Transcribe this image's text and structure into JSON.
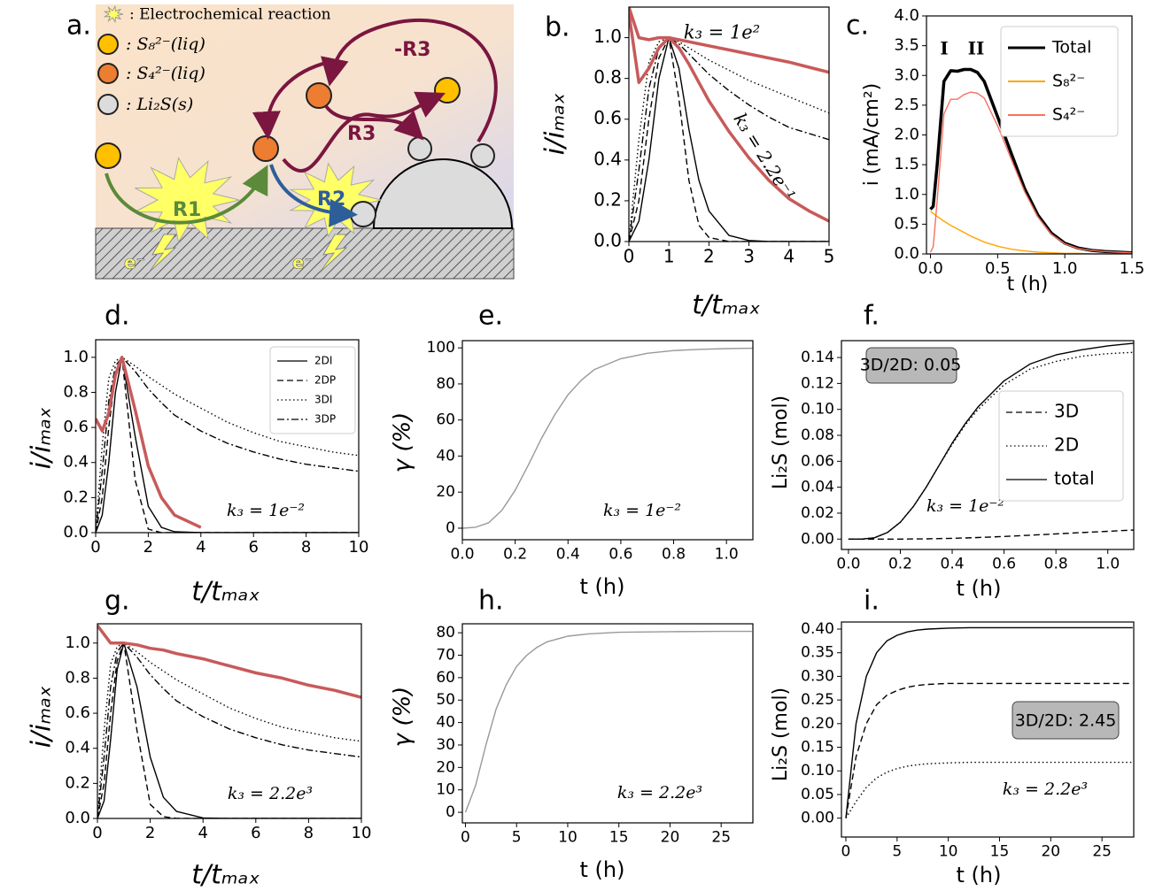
{
  "panel_a": {
    "label": "a.",
    "legend": [
      ": Electrochemical reaction",
      ": S₈²⁻(liq)",
      ": S₄²⁻(liq)",
      ": Li₂S(s)"
    ],
    "reactions": [
      "R1",
      "R2",
      "R3",
      "-R3"
    ],
    "electron": [
      "e⁻",
      "e⁻"
    ]
  },
  "chart_data": [
    {
      "type": "line",
      "panel_label": "b.",
      "xlabel": "t/tₘₐₓ",
      "ylabel": "i/iₘₐₓ",
      "xlim": [
        0,
        5
      ],
      "ylim": [
        0,
        1.15
      ],
      "xticks": [
        0,
        1,
        2,
        3,
        4,
        5
      ],
      "yticks": [
        {
          "value": 0,
          "label": "0.0"
        },
        0.2,
        0.4,
        0.6,
        0.8,
        {
          "value": 1,
          "label": "1.0"
        }
      ],
      "x": [
        0,
        0.25,
        0.5,
        0.75,
        1,
        1.25,
        1.5,
        1.75,
        2,
        2.5,
        3,
        3.5,
        4,
        4.5,
        5
      ],
      "series": [
        {
          "color": "#000000",
          "linestyle": "solid",
          "values": [
            0,
            0.1,
            0.4,
            0.8,
            1,
            0.85,
            0.55,
            0.3,
            0.15,
            0.03,
            0.005,
            0,
            0,
            0,
            0
          ]
        },
        {
          "color": "#000000",
          "linestyle": "dashed",
          "values": [
            0,
            0.2,
            0.6,
            0.9,
            1,
            0.7,
            0.3,
            0.08,
            0.02,
            0,
            0,
            0,
            0,
            0,
            0
          ]
        },
        {
          "color": "#000000",
          "linestyle": "dotted",
          "values": [
            0,
            0.5,
            0.88,
            0.98,
            1,
            0.98,
            0.95,
            0.92,
            0.89,
            0.84,
            0.79,
            0.75,
            0.71,
            0.67,
            0.63
          ]
        },
        {
          "color": "#000000",
          "linestyle": "dashdot",
          "values": [
            0,
            0.35,
            0.75,
            0.95,
            1,
            0.97,
            0.92,
            0.87,
            0.82,
            0.74,
            0.67,
            0.61,
            0.56,
            0.53,
            0.5
          ]
        },
        {
          "color": "#c85a5a",
          "linestyle": "thick",
          "values": [
            1.15,
            1.0,
            0.99,
            1.0,
            1.0,
            0.99,
            0.98,
            0.97,
            0.96,
            0.94,
            0.92,
            0.9,
            0.88,
            0.855,
            0.83
          ]
        },
        {
          "color": "#c85a5a",
          "linestyle": "thick",
          "values": [
            1.12,
            0.78,
            0.85,
            0.95,
            1.0,
            0.95,
            0.87,
            0.78,
            0.69,
            0.54,
            0.41,
            0.3,
            0.21,
            0.15,
            0.1
          ]
        }
      ],
      "annotations": [
        "k₃ = 1e²",
        "k₃ = 2.2e⁻¹"
      ]
    },
    {
      "type": "line",
      "panel_label": "c.",
      "xlabel": "t (h)",
      "ylabel": "i (mA/cm²)",
      "xlim": [
        -0.03,
        1.5
      ],
      "ylim": [
        0,
        4
      ],
      "xticks": [
        {
          "value": 0,
          "label": "0.0"
        },
        0.5,
        {
          "value": 1,
          "label": "1.0"
        },
        1.5
      ],
      "yticks": [
        {
          "value": 0,
          "label": "0.0"
        },
        0.5,
        {
          "value": 1,
          "label": "1.0"
        },
        1.5,
        {
          "value": 2,
          "label": "2.0"
        },
        2.5,
        {
          "value": 3,
          "label": "3.0"
        },
        3.5,
        {
          "value": 4,
          "label": "4.0"
        }
      ],
      "x": [
        0,
        0.02,
        0.05,
        0.1,
        0.15,
        0.2,
        0.25,
        0.3,
        0.35,
        0.4,
        0.5,
        0.6,
        0.7,
        0.8,
        0.9,
        1.0,
        1.1,
        1.2,
        1.3,
        1.4,
        1.5
      ],
      "series": [
        {
          "name": "Total",
          "color": "#000000",
          "linestyle": "thick",
          "values": [
            0.75,
            0.8,
            1.5,
            2.9,
            3.08,
            3.07,
            3.1,
            3.1,
            3.05,
            2.9,
            2.3,
            1.7,
            1.1,
            0.65,
            0.35,
            0.18,
            0.1,
            0.06,
            0.04,
            0.03,
            0.02
          ]
        },
        {
          "name": "S₈²⁻",
          "color": "#ffa500",
          "linestyle": "solid",
          "values": [
            0.72,
            0.68,
            0.63,
            0.55,
            0.48,
            0.42,
            0.36,
            0.3,
            0.25,
            0.2,
            0.13,
            0.08,
            0.05,
            0.03,
            0.02,
            0.01,
            0.01,
            0,
            0,
            0,
            0
          ]
        },
        {
          "name": "S₄²⁻",
          "color": "#f87060",
          "linestyle": "solid",
          "values": [
            0.03,
            0.12,
            0.9,
            2.35,
            2.6,
            2.6,
            2.68,
            2.72,
            2.7,
            2.62,
            2.15,
            1.6,
            1.05,
            0.62,
            0.33,
            0.17,
            0.09,
            0.06,
            0.04,
            0.03,
            0.02
          ]
        }
      ],
      "legend": "upper right",
      "annotations": [
        "I",
        "II"
      ]
    },
    {
      "type": "line",
      "panel_label": "d.",
      "xlabel": "t/tₘₐₓ",
      "ylabel": "i/iₘₐₓ",
      "xlim": [
        0,
        10
      ],
      "ylim": [
        0,
        1.1
      ],
      "xticks": [
        0,
        2,
        4,
        6,
        8,
        10
      ],
      "yticks": [
        {
          "value": 0,
          "label": "0.0"
        },
        0.2,
        0.4,
        0.6,
        0.8,
        {
          "value": 1,
          "label": "1.0"
        }
      ],
      "x": [
        0,
        0.25,
        0.5,
        0.75,
        1,
        1.5,
        2,
        2.5,
        3,
        4,
        5,
        6,
        7,
        8,
        9,
        10
      ],
      "series": [
        {
          "name": "2DI",
          "color": "#000000",
          "linestyle": "solid",
          "values": [
            0,
            0.1,
            0.4,
            0.8,
            1,
            0.55,
            0.15,
            0.03,
            0.005,
            0,
            0,
            0,
            0,
            0,
            0,
            0
          ]
        },
        {
          "name": "2DP",
          "color": "#000000",
          "linestyle": "dashed",
          "values": [
            0,
            0.2,
            0.6,
            0.9,
            1,
            0.3,
            0.02,
            0,
            0,
            0,
            0,
            0,
            0,
            0,
            0,
            0
          ]
        },
        {
          "name": "3DI",
          "color": "#000000",
          "linestyle": "dotted",
          "values": [
            0,
            0.5,
            0.88,
            0.98,
            1,
            0.95,
            0.89,
            0.84,
            0.79,
            0.71,
            0.63,
            0.57,
            0.52,
            0.49,
            0.46,
            0.44
          ]
        },
        {
          "name": "3DP",
          "color": "#000000",
          "linestyle": "dashdot",
          "values": [
            0,
            0.35,
            0.75,
            0.95,
            1,
            0.92,
            0.82,
            0.74,
            0.67,
            0.58,
            0.51,
            0.46,
            0.42,
            0.39,
            0.37,
            0.35
          ]
        },
        {
          "color": "#c85a5a",
          "linestyle": "thick",
          "values": [
            0.65,
            0.58,
            0.68,
            0.9,
            1.0,
            0.7,
            0.38,
            0.2,
            0.1,
            0.03,
            null,
            null,
            null,
            null,
            null,
            null
          ]
        }
      ],
      "legend": "upper right",
      "annotations": [
        "k₃ = 1e⁻²"
      ]
    },
    {
      "type": "line",
      "panel_label": "e.",
      "xlabel": "t (h)",
      "ylabel": "γ (%)",
      "xlim": [
        0,
        1.1
      ],
      "ylim": [
        -6.4,
        104
      ],
      "xticks": [
        {
          "value": 0,
          "label": "0.0"
        },
        0.2,
        0.4,
        0.6,
        0.8,
        {
          "value": 1,
          "label": "1.0"
        }
      ],
      "yticks": [
        0,
        20,
        40,
        60,
        80,
        100
      ],
      "x": [
        0,
        0.05,
        0.1,
        0.15,
        0.2,
        0.25,
        0.3,
        0.35,
        0.4,
        0.45,
        0.5,
        0.6,
        0.7,
        0.8,
        0.9,
        1.0,
        1.1
      ],
      "series": [
        {
          "color": "#999999",
          "linestyle": "solid",
          "values": [
            0,
            0.5,
            3,
            10,
            21,
            35,
            50,
            63,
            74,
            82,
            88,
            94,
            97,
            98.5,
            99.2,
            99.6,
            99.8
          ]
        }
      ],
      "annotations": [
        "k₃ = 1e⁻²"
      ]
    },
    {
      "type": "line",
      "panel_label": "f.",
      "xlabel": "t (h)",
      "ylabel": "Li₂S (mol)",
      "xlim": [
        -0.027,
        1.1
      ],
      "ylim": [
        -0.008,
        0.153
      ],
      "xticks": [
        {
          "value": 0,
          "label": "0.0"
        },
        0.2,
        0.4,
        0.6,
        0.8,
        {
          "value": 1,
          "label": "1.0"
        }
      ],
      "yticks": [
        {
          "value": 0,
          "label": "0.00"
        },
        0.02,
        0.04,
        0.06,
        0.08,
        {
          "value": 0.1,
          "label": "0.10"
        },
        0.12,
        0.14
      ],
      "x": [
        0,
        0.05,
        0.1,
        0.15,
        0.2,
        0.25,
        0.3,
        0.35,
        0.4,
        0.45,
        0.5,
        0.6,
        0.7,
        0.8,
        0.9,
        1.0,
        1.1
      ],
      "series": [
        {
          "name": "3D",
          "color": "#000000",
          "linestyle": "dashed",
          "values": [
            0,
            0,
            0,
            0,
            0,
            0.0001,
            0.0002,
            0.0004,
            0.0006,
            0.0009,
            0.0012,
            0.002,
            0.003,
            0.004,
            0.005,
            0.006,
            0.007
          ]
        },
        {
          "name": "2D",
          "color": "#000000",
          "linestyle": "dotted",
          "values": [
            0,
            0,
            0.001,
            0.005,
            0.013,
            0.025,
            0.04,
            0.057,
            0.073,
            0.088,
            0.1,
            0.119,
            0.131,
            0.137,
            0.141,
            0.143,
            0.144
          ]
        },
        {
          "name": "total",
          "color": "#000000",
          "linestyle": "solid",
          "values": [
            0,
            0,
            0.001,
            0.005,
            0.013,
            0.025,
            0.04,
            0.057,
            0.074,
            0.089,
            0.102,
            0.122,
            0.135,
            0.142,
            0.146,
            0.149,
            0.151
          ]
        }
      ],
      "legend": "center right",
      "annotations": [
        "3D/2D: 0.05",
        "k₃ = 1e⁻²"
      ]
    },
    {
      "type": "line",
      "panel_label": "g.",
      "xlabel": "t/tₘₐₓ",
      "ylabel": "i/iₘₐₓ",
      "xlim": [
        0,
        10
      ],
      "ylim": [
        0,
        1.11
      ],
      "xticks": [
        0,
        2,
        4,
        6,
        8,
        10
      ],
      "yticks": [
        {
          "value": 0,
          "label": "0.0"
        },
        0.2,
        0.4,
        0.6,
        0.8,
        {
          "value": 1,
          "label": "1.0"
        }
      ],
      "x": [
        0,
        0.25,
        0.5,
        0.75,
        1,
        1.5,
        2,
        2.5,
        3,
        4,
        5,
        6,
        7,
        8,
        9,
        10
      ],
      "series": [
        {
          "color": "#000000",
          "linestyle": "solid",
          "values": [
            0,
            0.1,
            0.45,
            0.85,
            1,
            0.75,
            0.35,
            0.12,
            0.04,
            0.003,
            0,
            0,
            0,
            0,
            0,
            0
          ]
        },
        {
          "color": "#000000",
          "linestyle": "dashed",
          "values": [
            0,
            0.2,
            0.6,
            0.9,
            1,
            0.5,
            0.08,
            0.01,
            0,
            0,
            0,
            0,
            0,
            0,
            0,
            0
          ]
        },
        {
          "color": "#000000",
          "linestyle": "dotted",
          "values": [
            0,
            0.5,
            0.88,
            0.98,
            1,
            0.95,
            0.89,
            0.84,
            0.79,
            0.71,
            0.63,
            0.57,
            0.52,
            0.49,
            0.46,
            0.44
          ]
        },
        {
          "color": "#000000",
          "linestyle": "dashdot",
          "values": [
            0,
            0.35,
            0.75,
            0.95,
            1,
            0.92,
            0.82,
            0.74,
            0.67,
            0.58,
            0.51,
            0.46,
            0.42,
            0.39,
            0.37,
            0.35
          ]
        },
        {
          "color": "#c85a5a",
          "linestyle": "thick",
          "values": [
            1.1,
            1.05,
            1.0,
            1.0,
            1.0,
            0.99,
            0.97,
            0.96,
            0.94,
            0.91,
            0.87,
            0.83,
            0.8,
            0.76,
            0.73,
            0.69
          ]
        }
      ],
      "annotations": [
        "k₃ = 2.2e³"
      ]
    },
    {
      "type": "line",
      "panel_label": "h.",
      "xlabel": "t (h)",
      "ylabel": "γ (%)",
      "xlim": [
        -0.3,
        28.1
      ],
      "ylim": [
        -4.7,
        84
      ],
      "xticks": [
        0,
        5,
        10,
        15,
        20,
        25
      ],
      "yticks": [
        0,
        10,
        20,
        30,
        40,
        50,
        60,
        70,
        80
      ],
      "x": [
        0,
        1,
        2,
        3,
        4,
        5,
        6,
        7,
        8,
        10,
        12,
        15,
        20,
        25,
        28
      ],
      "series": [
        {
          "color": "#999999",
          "linestyle": "solid",
          "values": [
            0,
            12,
            30,
            46,
            57,
            65,
            70,
            73.5,
            76,
            78.5,
            79.5,
            80.2,
            80.5,
            80.6,
            80.6
          ]
        }
      ],
      "annotations": [
        "k₃ = 2.2e³"
      ]
    },
    {
      "type": "line",
      "panel_label": "i.",
      "xlabel": "t (h)",
      "ylabel": "Li₂S (mol)",
      "xlim": [
        -0.43,
        28.1
      ],
      "ylim": [
        -0.04,
        0.415
      ],
      "xticks": [
        0,
        5,
        10,
        15,
        20,
        25
      ],
      "yticks": [
        {
          "value": 0,
          "label": "0.00"
        },
        0.05,
        {
          "value": 0.1,
          "label": "0.10"
        },
        0.15,
        {
          "value": 0.2,
          "label": "0.20"
        },
        0.25,
        {
          "value": 0.3,
          "label": "0.30"
        },
        0.35,
        {
          "value": 0.4,
          "label": "0.40"
        }
      ],
      "x": [
        0,
        1,
        2,
        3,
        4,
        5,
        6,
        7,
        8,
        10,
        12,
        15,
        20,
        25,
        28
      ],
      "series": [
        {
          "color": "#000000",
          "linestyle": "solid",
          "values": [
            0,
            0.2,
            0.3,
            0.35,
            0.375,
            0.387,
            0.394,
            0.398,
            0.4,
            0.402,
            0.403,
            0.403,
            0.403,
            0.403,
            0.403
          ]
        },
        {
          "color": "#000000",
          "linestyle": "dashed",
          "values": [
            0,
            0.13,
            0.2,
            0.24,
            0.26,
            0.27,
            0.277,
            0.281,
            0.283,
            0.285,
            0.285,
            0.285,
            0.285,
            0.285,
            0.285
          ]
        },
        {
          "color": "#000000",
          "linestyle": "dotted",
          "values": [
            0,
            0.035,
            0.065,
            0.085,
            0.097,
            0.105,
            0.11,
            0.113,
            0.115,
            0.117,
            0.118,
            0.118,
            0.118,
            0.118,
            0.118
          ]
        }
      ],
      "annotations": [
        "3D/2D: 2.45",
        "k₃ = 2.2e³"
      ]
    }
  ]
}
